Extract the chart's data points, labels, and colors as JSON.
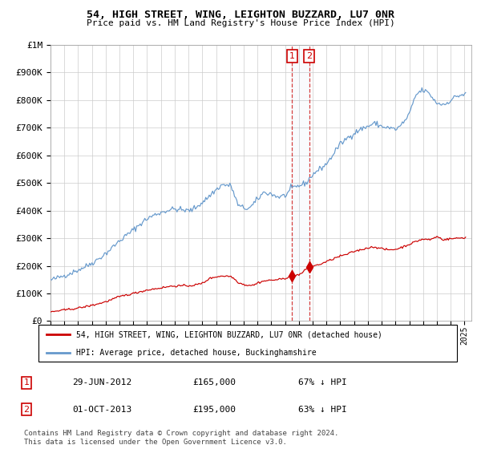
{
  "title": "54, HIGH STREET, WING, LEIGHTON BUZZARD, LU7 0NR",
  "subtitle": "Price paid vs. HM Land Registry's House Price Index (HPI)",
  "legend_line1": "54, HIGH STREET, WING, LEIGHTON BUZZARD, LU7 0NR (detached house)",
  "legend_line2": "HPI: Average price, detached house, Buckinghamshire",
  "transaction1_date": "29-JUN-2012",
  "transaction1_price": 165000,
  "transaction1_hpi": "67% ↓ HPI",
  "transaction2_date": "01-OCT-2013",
  "transaction2_price": 195000,
  "transaction2_hpi": "63% ↓ HPI",
  "footnote": "Contains HM Land Registry data © Crown copyright and database right 2024.\nThis data is licensed under the Open Government Licence v3.0.",
  "red_color": "#cc0000",
  "blue_color": "#6699cc",
  "background_color": "#ffffff",
  "grid_color": "#cccccc",
  "ylim": [
    0,
    1000000
  ],
  "t1_year": 2012.5,
  "t2_year": 2013.75,
  "t1_price": 165000,
  "t2_price": 195000,
  "xmin": 1995,
  "xmax": 2025.5
}
